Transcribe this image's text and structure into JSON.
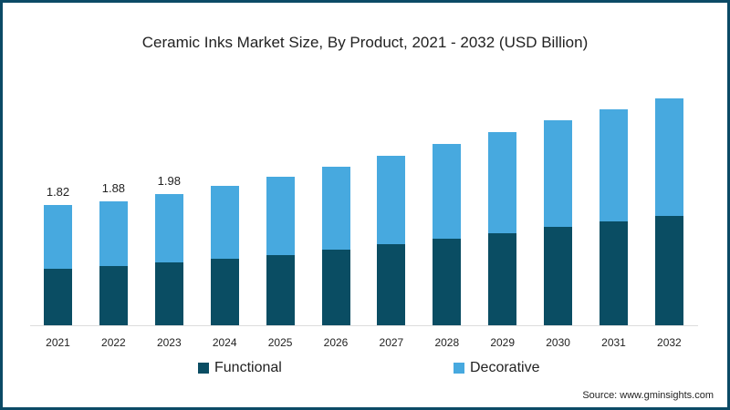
{
  "chart_data": {
    "type": "bar",
    "stacked": true,
    "title": "Ceramic Inks Market Size, By Product, 2021 - 2032 (USD Billion)",
    "xlabel": "",
    "ylabel": "",
    "categories": [
      "2021",
      "2022",
      "2023",
      "2024",
      "2025",
      "2026",
      "2027",
      "2028",
      "2029",
      "2030",
      "2031",
      "2032"
    ],
    "series": [
      {
        "name": "Functional",
        "color": "#0a4d63",
        "values": [
          0.86,
          0.9,
          0.95,
          1.01,
          1.06,
          1.14,
          1.23,
          1.31,
          1.39,
          1.49,
          1.57,
          1.65
        ]
      },
      {
        "name": "Decorative",
        "color": "#47a9df",
        "values": [
          0.96,
          0.98,
          1.03,
          1.1,
          1.19,
          1.26,
          1.33,
          1.43,
          1.53,
          1.61,
          1.7,
          1.78
        ]
      }
    ],
    "totals": [
      1.82,
      1.88,
      1.98,
      2.11,
      2.25,
      2.4,
      2.56,
      2.74,
      2.92,
      3.1,
      3.27,
      3.43
    ],
    "data_labels": [
      {
        "category": "2021",
        "label": "1.82"
      },
      {
        "category": "2022",
        "label": "1.88"
      },
      {
        "category": "2023",
        "label": "1.98"
      }
    ],
    "legend_position": "bottom",
    "grid": false,
    "ylim": [
      0,
      3.5
    ]
  },
  "legend": {
    "functional": "Functional",
    "decorative": "Decorative"
  },
  "source": "Source: www.gminsights.com"
}
